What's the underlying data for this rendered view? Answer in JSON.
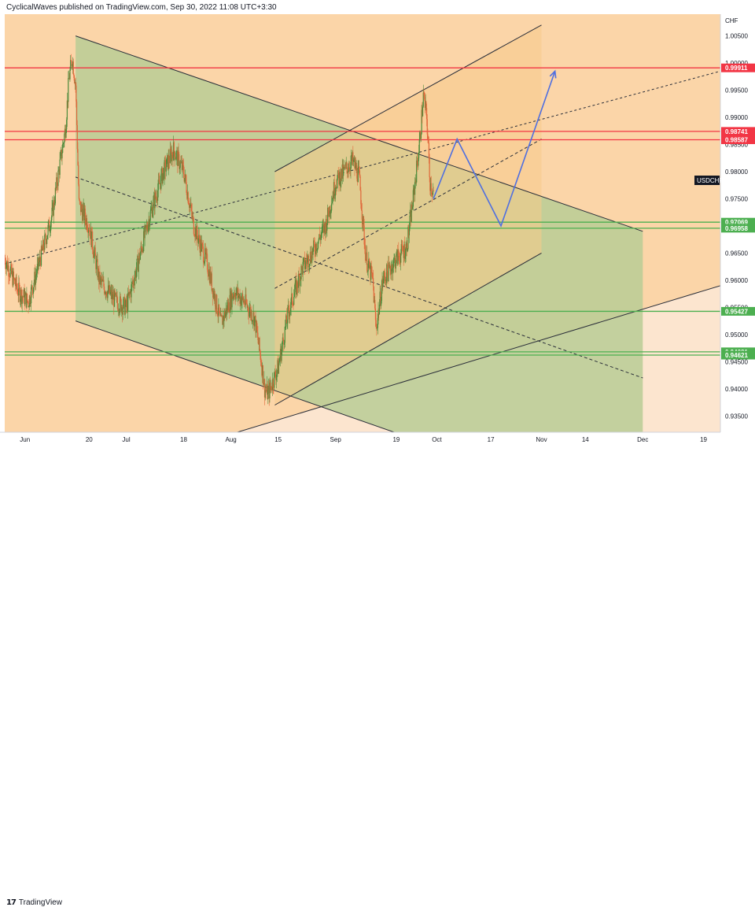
{
  "header": {
    "publisher_text": "CyclicalWaves published on TradingView.com, Sep 30, 2022 11:08 UTC+3:30"
  },
  "footer": {
    "brand": "TradingView",
    "logo_mark": "17"
  },
  "chart_data": {
    "type": "candlestick",
    "symbol": "USDCHF",
    "currency_label": "CHF",
    "y_range": [
      0.932,
      1.009
    ],
    "y_ticks": [
      1.005,
      1.0,
      0.995,
      0.99,
      0.985,
      0.98,
      0.975,
      0.97,
      0.965,
      0.96,
      0.955,
      0.95,
      0.945,
      0.94,
      0.935
    ],
    "x_range": [
      "2022-05-26",
      "2022-12-24"
    ],
    "x_ticks": [
      {
        "date": "2022-06-01",
        "label": "Jun"
      },
      {
        "date": "2022-06-20",
        "label": "20"
      },
      {
        "date": "2022-07-01",
        "label": "Jul"
      },
      {
        "date": "2022-07-18",
        "label": "18"
      },
      {
        "date": "2022-08-01",
        "label": "Aug"
      },
      {
        "date": "2022-08-15",
        "label": "15"
      },
      {
        "date": "2022-09-01",
        "label": "Sep"
      },
      {
        "date": "2022-09-19",
        "label": "19"
      },
      {
        "date": "2022-10-01",
        "label": "Oct"
      },
      {
        "date": "2022-10-17",
        "label": "17"
      },
      {
        "date": "2022-11-01",
        "label": "Nov"
      },
      {
        "date": "2022-11-14",
        "label": "14"
      },
      {
        "date": "2022-12-01",
        "label": "Dec"
      },
      {
        "date": "2022-12-19",
        "label": "19"
      }
    ],
    "price_path": [
      [
        "2022-05-26",
        0.964
      ],
      [
        "2022-05-30",
        0.958
      ],
      [
        "2022-06-02",
        0.956
      ],
      [
        "2022-06-06",
        0.965
      ],
      [
        "2022-06-09",
        0.972
      ],
      [
        "2022-06-11",
        0.98
      ],
      [
        "2022-06-13",
        0.988
      ],
      [
        "2022-06-14",
        0.997
      ],
      [
        "2022-06-15",
        1.001
      ],
      [
        "2022-06-16",
        0.996
      ],
      [
        "2022-06-17",
        0.974
      ],
      [
        "2022-06-20",
        0.97
      ],
      [
        "2022-06-23",
        0.96
      ],
      [
        "2022-06-28",
        0.956
      ],
      [
        "2022-07-01",
        0.955
      ],
      [
        "2022-07-04",
        0.962
      ],
      [
        "2022-07-08",
        0.972
      ],
      [
        "2022-07-12",
        0.98
      ],
      [
        "2022-07-15",
        0.984
      ],
      [
        "2022-07-18",
        0.98
      ],
      [
        "2022-07-21",
        0.97
      ],
      [
        "2022-07-25",
        0.963
      ],
      [
        "2022-07-29",
        0.952
      ],
      [
        "2022-08-02",
        0.958
      ],
      [
        "2022-08-05",
        0.956
      ],
      [
        "2022-08-08",
        0.953
      ],
      [
        "2022-08-10",
        0.945
      ],
      [
        "2022-08-11",
        0.94
      ],
      [
        "2022-08-12",
        0.939
      ],
      [
        "2022-08-15",
        0.944
      ],
      [
        "2022-08-18",
        0.954
      ],
      [
        "2022-08-22",
        0.962
      ],
      [
        "2022-08-25",
        0.965
      ],
      [
        "2022-08-29",
        0.97
      ],
      [
        "2022-09-01",
        0.978
      ],
      [
        "2022-09-06",
        0.982
      ],
      [
        "2022-09-08",
        0.979
      ],
      [
        "2022-09-10",
        0.964
      ],
      [
        "2022-09-12",
        0.96
      ],
      [
        "2022-09-13",
        0.951
      ],
      [
        "2022-09-15",
        0.96
      ],
      [
        "2022-09-19",
        0.964
      ],
      [
        "2022-09-22",
        0.966
      ],
      [
        "2022-09-24",
        0.975
      ],
      [
        "2022-09-26",
        0.986
      ],
      [
        "2022-09-27",
        0.994
      ],
      [
        "2022-09-28",
        0.99
      ],
      [
        "2022-09-29",
        0.978
      ],
      [
        "2022-09-30",
        0.976
      ]
    ],
    "horizontal_levels": [
      {
        "value": 0.99911,
        "label": "0.99911",
        "color": "#f23645"
      },
      {
        "value": 0.98741,
        "label": "0.98741",
        "color": "#f23645"
      },
      {
        "value": 0.98587,
        "label": "0.98587",
        "color": "#f23645"
      },
      {
        "value": 0.97069,
        "label": "0.97069",
        "color": "#4caf50"
      },
      {
        "value": 0.96958,
        "label": "0.96958",
        "color": "#4caf50"
      },
      {
        "value": 0.95427,
        "label": "0.95427",
        "color": "#4caf50"
      },
      {
        "value": 0.94681,
        "label": "0.94681",
        "color": "#4caf50"
      },
      {
        "value": 0.94621,
        "label": "0.94621",
        "color": "#4caf50"
      }
    ],
    "descending_channel": {
      "upper": [
        [
          "2022-06-16",
          1.005
        ],
        [
          "2022-12-01",
          0.969
        ]
      ],
      "lower": [
        [
          "2022-06-16",
          0.9525
        ],
        [
          "2022-12-01",
          0.916
        ]
      ],
      "mid": [
        [
          "2022-06-16",
          0.979
        ],
        [
          "2022-12-01",
          0.942
        ]
      ]
    },
    "ascending_channel": {
      "upper": [
        [
          "2022-08-14",
          0.98
        ],
        [
          "2022-11-01",
          1.007
        ]
      ],
      "lower": [
        [
          "2022-08-14",
          0.937
        ],
        [
          "2022-11-01",
          0.965
        ]
      ],
      "mid": [
        [
          "2022-08-14",
          0.9585
        ],
        [
          "2022-11-01",
          0.986
        ]
      ]
    },
    "long_trendline_dashed": [
      [
        "2022-05-26",
        0.963
      ],
      [
        "2022-12-24",
        0.9985
      ]
    ],
    "long_trendline_solid": [
      [
        "2022-05-26",
        0.919
      ],
      [
        "2022-12-24",
        0.959
      ]
    ],
    "projection_path": [
      [
        "2022-09-30",
        0.975
      ],
      [
        "2022-10-07",
        0.986
      ],
      [
        "2022-10-20",
        0.97
      ],
      [
        "2022-11-05",
        0.9985
      ]
    ],
    "colors": {
      "background_orange": "#fbd5a8",
      "background_light": "#fce5cf",
      "descending_fill": "#b9cd95",
      "ascending_fill": "#f7cb8a",
      "projection": "#4f6fe0",
      "candle_up": "#4a8a3a",
      "candle_down": "#e0673a",
      "symbol_badge": "#131722"
    }
  }
}
